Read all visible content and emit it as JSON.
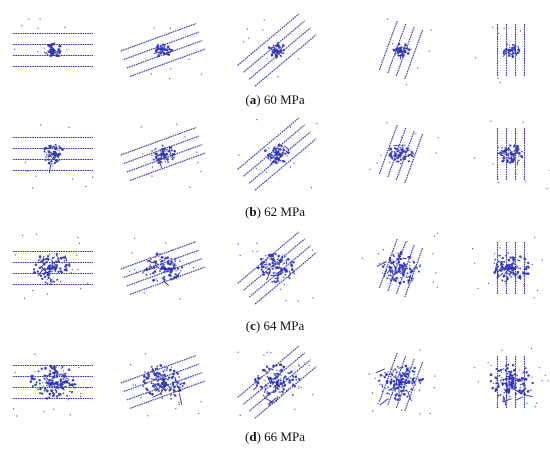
{
  "colors": {
    "crack": "#2b2fa8",
    "spot": "#3a3dbb",
    "caption": "#111111"
  },
  "rows": [
    {
      "label_letter": "a",
      "label_text": "60 MPa"
    },
    {
      "label_letter": "b",
      "label_text": "62 MPa"
    },
    {
      "label_letter": "c",
      "label_text": "64 MPa"
    },
    {
      "label_letter": "d",
      "label_text": "66 MPa"
    }
  ],
  "panel_angles": [
    0,
    20,
    40,
    70,
    90
  ],
  "damage_levels": [
    1,
    2,
    4,
    5
  ]
}
